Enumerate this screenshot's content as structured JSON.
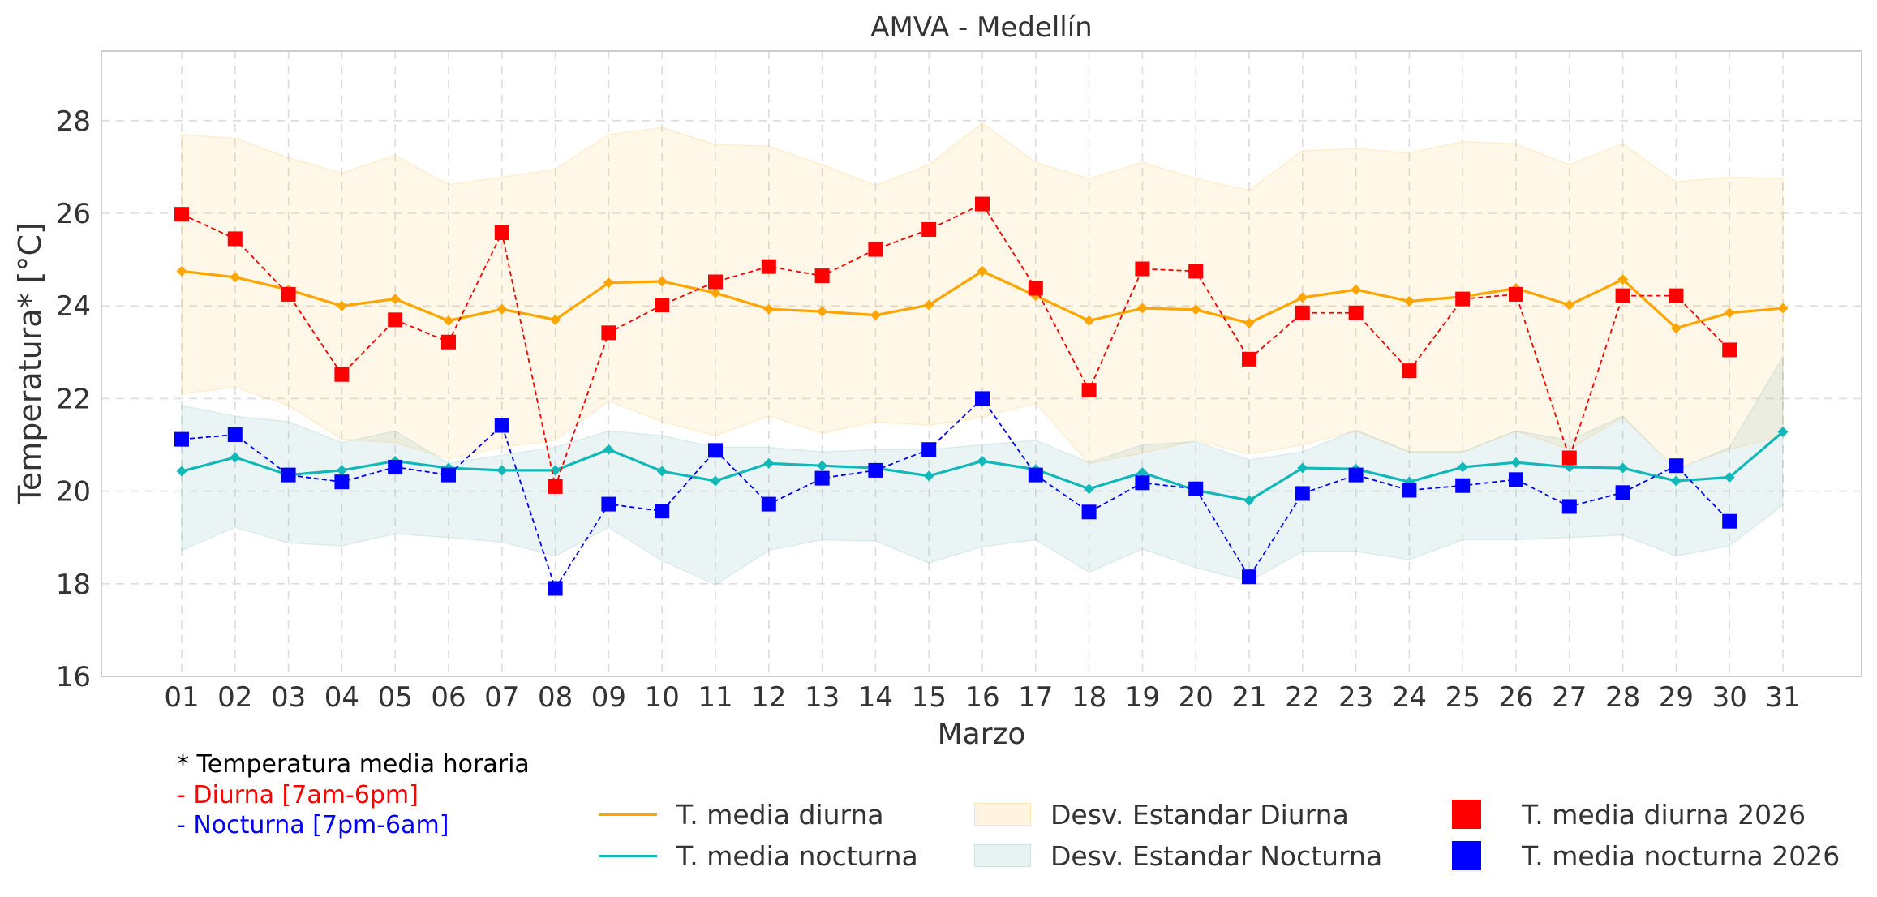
{
  "chart_data": {
    "type": "line",
    "title": "AMVA - Medellín",
    "xlabel": "Marzo",
    "ylabel": "Temperatura* [°C]",
    "ylim": [
      16,
      29.5
    ],
    "yticks": [
      16,
      18,
      20,
      22,
      24,
      26,
      28
    ],
    "categories": [
      "01",
      "02",
      "03",
      "04",
      "05",
      "06",
      "07",
      "08",
      "09",
      "10",
      "11",
      "12",
      "13",
      "14",
      "15",
      "16",
      "17",
      "18",
      "19",
      "20",
      "21",
      "22",
      "23",
      "24",
      "25",
      "26",
      "27",
      "28",
      "29",
      "30",
      "31"
    ],
    "grid": true,
    "series": [
      {
        "name": "T. media diurna",
        "kind": "line",
        "color": "#FFA500",
        "values": [
          24.75,
          24.62,
          24.35,
          24.0,
          24.15,
          23.68,
          23.93,
          23.7,
          24.5,
          24.53,
          24.28,
          23.93,
          23.88,
          23.8,
          24.02,
          24.75,
          24.22,
          23.68,
          23.95,
          23.92,
          23.63,
          24.18,
          24.35,
          24.1,
          24.2,
          24.38,
          24.02,
          24.57,
          23.52,
          23.85,
          23.95
        ]
      },
      {
        "name": "T. media nocturna",
        "kind": "line",
        "color": "#12B8B8",
        "values": [
          20.43,
          20.73,
          20.35,
          20.45,
          20.65,
          20.5,
          20.45,
          20.45,
          20.9,
          20.43,
          20.22,
          20.6,
          20.55,
          20.5,
          20.33,
          20.65,
          20.47,
          20.05,
          20.4,
          20.02,
          19.8,
          20.5,
          20.48,
          20.2,
          20.52,
          20.62,
          20.52,
          20.5,
          20.22,
          20.3,
          21.28
        ]
      },
      {
        "name": "Desv. Estandar Diurna",
        "kind": "band",
        "color": "#FFA500",
        "upper": [
          27.7,
          27.62,
          27.2,
          26.87,
          27.25,
          26.62,
          26.78,
          26.95,
          27.7,
          27.85,
          27.48,
          27.45,
          27.05,
          26.6,
          27.05,
          27.95,
          27.1,
          26.75,
          27.1,
          26.75,
          26.5,
          27.35,
          27.4,
          27.3,
          27.55,
          27.5,
          27.05,
          27.5,
          26.68,
          26.78,
          26.75
        ],
        "lower": [
          22.1,
          22.25,
          21.85,
          21.12,
          21.05,
          20.7,
          20.95,
          21.1,
          21.95,
          21.5,
          21.2,
          21.62,
          21.25,
          21.5,
          21.42,
          21.6,
          21.9,
          20.6,
          20.82,
          21.1,
          20.8,
          21.0,
          21.3,
          20.85,
          20.85,
          21.3,
          20.9,
          21.6,
          20.5,
          20.9,
          21.2
        ]
      },
      {
        "name": "Desv. Estandar Nocturna",
        "kind": "band",
        "color": "#7FC4C4",
        "upper": [
          21.85,
          21.62,
          21.5,
          21.05,
          21.3,
          20.6,
          20.78,
          20.95,
          21.3,
          21.2,
          20.95,
          20.95,
          20.85,
          20.9,
          20.9,
          21.0,
          21.1,
          20.62,
          21.0,
          21.07,
          20.68,
          20.85,
          21.32,
          20.85,
          20.85,
          21.3,
          21.1,
          21.62,
          20.45,
          20.95,
          22.9
        ],
        "lower": [
          18.72,
          19.22,
          18.88,
          18.82,
          19.08,
          19.0,
          18.9,
          18.6,
          19.22,
          18.5,
          17.98,
          18.72,
          18.95,
          18.92,
          18.45,
          18.8,
          18.95,
          18.25,
          18.75,
          18.35,
          18.05,
          18.7,
          18.7,
          18.52,
          18.95,
          18.95,
          19.0,
          19.05,
          18.6,
          18.82,
          19.7
        ]
      },
      {
        "name": "T. media diurna 2026",
        "kind": "markers",
        "color": "#FF0000",
        "values": [
          25.98,
          25.45,
          24.25,
          22.52,
          23.7,
          23.22,
          25.58,
          20.1,
          23.42,
          24.02,
          24.52,
          24.85,
          24.65,
          25.22,
          25.65,
          26.2,
          24.38,
          22.18,
          24.8,
          24.75,
          22.85,
          23.85,
          23.85,
          22.6,
          24.15,
          24.25,
          20.72,
          24.22,
          24.22,
          23.05,
          null
        ]
      },
      {
        "name": "T. media nocturna 2026",
        "kind": "markers",
        "color": "#0000FF",
        "values": [
          21.12,
          21.22,
          20.35,
          20.2,
          20.52,
          20.35,
          21.42,
          17.9,
          19.72,
          19.57,
          20.88,
          19.72,
          20.28,
          20.45,
          20.9,
          22.0,
          20.35,
          19.55,
          20.18,
          20.05,
          18.15,
          19.95,
          20.35,
          20.02,
          20.12,
          20.25,
          19.67,
          19.97,
          20.55,
          19.35,
          null
        ]
      }
    ]
  },
  "notes": {
    "line1": "* Temperatura media horaria",
    "line2": "- Diurna [7am-6pm]",
    "line3": "- Nocturna [7pm-6am]",
    "line2_color": "#FF0000",
    "line3_color": "#0000FF"
  }
}
